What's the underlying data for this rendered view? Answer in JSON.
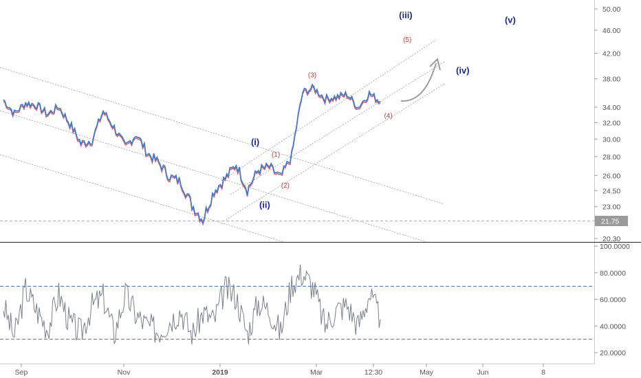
{
  "colors": {
    "price_blue": "#3a7bd5",
    "price_red": "#e25c5c",
    "rsi_line": "#7a7f8a",
    "wave_major": "#1a2a8f",
    "wave_minor": "#d23b3b",
    "axis_text": "#555555",
    "grid": "#cccccc",
    "rsi_upper_line": "#4a6fb0",
    "rsi_lower_line": "#d05050",
    "price_tag_bg": "#9a9a9a"
  },
  "chart_data": [
    {
      "type": "line",
      "panel": "price",
      "scale": "log",
      "ylim": [
        20.3,
        52
      ],
      "y_ticks": [
        "50.00",
        "46.00",
        "42.00",
        "38.00",
        "34.00",
        "32.00",
        "30.00",
        "28.00",
        "26.00",
        "24.50",
        "23.00",
        "20.30"
      ],
      "current_price_label": "21.75",
      "current_price": 21.75,
      "x_tick_labels": [
        "Sep",
        "Nov",
        "2019",
        "Mar",
        "12:30",
        "May",
        "Jun",
        "8"
      ],
      "x_tick_bold": "2019",
      "series": [
        {
          "color": "blue",
          "x": [
            "2018-08-20",
            "2018-08-27",
            "2018-09-03",
            "2018-09-10",
            "2018-09-17",
            "2018-09-24",
            "2018-10-01",
            "2018-10-08",
            "2018-10-15",
            "2018-10-22",
            "2018-10-29",
            "2018-11-05",
            "2018-11-12",
            "2018-11-19",
            "2018-11-26",
            "2018-12-03",
            "2018-12-10",
            "2018-12-17",
            "2018-12-24",
            "2018-12-31",
            "2019-01-07",
            "2019-01-14",
            "2019-01-21",
            "2019-01-28",
            "2019-02-04",
            "2019-02-11",
            "2019-02-18",
            "2019-02-25",
            "2019-03-04",
            "2019-03-11",
            "2019-03-18",
            "2019-03-25",
            "2019-04-01",
            "2019-04-08",
            "2019-04-15"
          ],
          "values": [
            35.0,
            33.2,
            34.6,
            34.3,
            33.1,
            34.1,
            31.9,
            29.5,
            29.9,
            33.5,
            31.4,
            29.1,
            30.6,
            28.4,
            27.4,
            25.9,
            25.4,
            23.2,
            21.9,
            24.5,
            25.7,
            27.2,
            24.6,
            26.6,
            26.9,
            25.8,
            28.1,
            36.1,
            36.7,
            35.2,
            35.4,
            35.8,
            34.0,
            35.9,
            34.8
          ]
        }
      ],
      "channels": [
        "descending channel (dotted)",
        "ascending channel (dotted)"
      ],
      "wave_labels": {
        "major": [
          {
            "text": "(i)",
            "date": "2019-01-26",
            "price": 29.3
          },
          {
            "text": "(ii)",
            "date": "2019-02-01",
            "price": 22.9
          },
          {
            "text": "(iii)",
            "date": "2019-05-01",
            "price": 48.2
          },
          {
            "text": "(iv)",
            "date": "2019-06-06",
            "price": 38.8
          },
          {
            "text": "(v)",
            "date": "2019-07-06",
            "price": 47.3
          }
        ],
        "minor": [
          {
            "text": "(1)",
            "date": "2019-02-08",
            "price": 28.0
          },
          {
            "text": "(2)",
            "date": "2019-02-14",
            "price": 24.8
          },
          {
            "text": "(3)",
            "date": "2019-03-03",
            "price": 38.2
          },
          {
            "text": "(4)",
            "date": "2019-04-20",
            "price": 32.6
          },
          {
            "text": "(5)",
            "date": "2019-05-02",
            "price": 43.9
          }
        ]
      }
    },
    {
      "type": "line",
      "panel": "rsi",
      "ylim": [
        10,
        105
      ],
      "y_ticks": [
        "100.0000",
        "80.0000",
        "60.0000",
        "40.0000",
        "20.0000"
      ],
      "levels": [
        70,
        30
      ],
      "series": [
        {
          "x": [
            "2018-08-20",
            "2018-08-27",
            "2018-09-03",
            "2018-09-10",
            "2018-09-17",
            "2018-09-24",
            "2018-10-01",
            "2018-10-08",
            "2018-10-15",
            "2018-10-22",
            "2018-10-29",
            "2018-11-05",
            "2018-11-12",
            "2018-11-19",
            "2018-11-26",
            "2018-12-03",
            "2018-12-10",
            "2018-12-17",
            "2018-12-24",
            "2018-12-31",
            "2019-01-07",
            "2019-01-14",
            "2019-01-21",
            "2019-01-28",
            "2019-02-04",
            "2019-02-11",
            "2019-02-18",
            "2019-02-25",
            "2019-03-04",
            "2019-03-11",
            "2019-03-18",
            "2019-03-25",
            "2019-04-01",
            "2019-04-08",
            "2019-04-15"
          ],
          "values": [
            55,
            32,
            68,
            52,
            38,
            64,
            42,
            35,
            55,
            62,
            34,
            64,
            48,
            40,
            36,
            44,
            52,
            33,
            50,
            44,
            68,
            62,
            34,
            58,
            52,
            35,
            72,
            80,
            68,
            40,
            52,
            56,
            40,
            64,
            45
          ]
        }
      ]
    }
  ]
}
